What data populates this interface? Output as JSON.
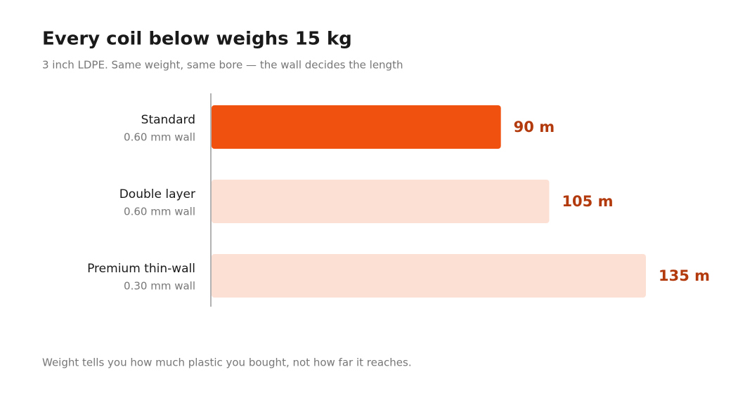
{
  "chart_data": {
    "type": "bar",
    "orientation": "horizontal",
    "title": "Every coil below weighs 15 kg",
    "subtitle": "3 inch LDPE. Same weight, same bore — the wall decides the length",
    "categories": [
      "Standard",
      "Double layer",
      "Premium thin-wall"
    ],
    "category_notes": [
      "0.60 mm wall",
      "0.60 mm wall",
      "0.30 mm wall"
    ],
    "values": [
      90,
      105,
      135
    ],
    "value_labels": [
      "90 m",
      "105 m",
      "135 m"
    ],
    "colors": [
      "#f0510f",
      "#fde0d4",
      "#fde0d4"
    ],
    "xlim": [
      0,
      135
    ],
    "footnote": "Weight tells you how much plastic you bought, not how far it reaches."
  }
}
